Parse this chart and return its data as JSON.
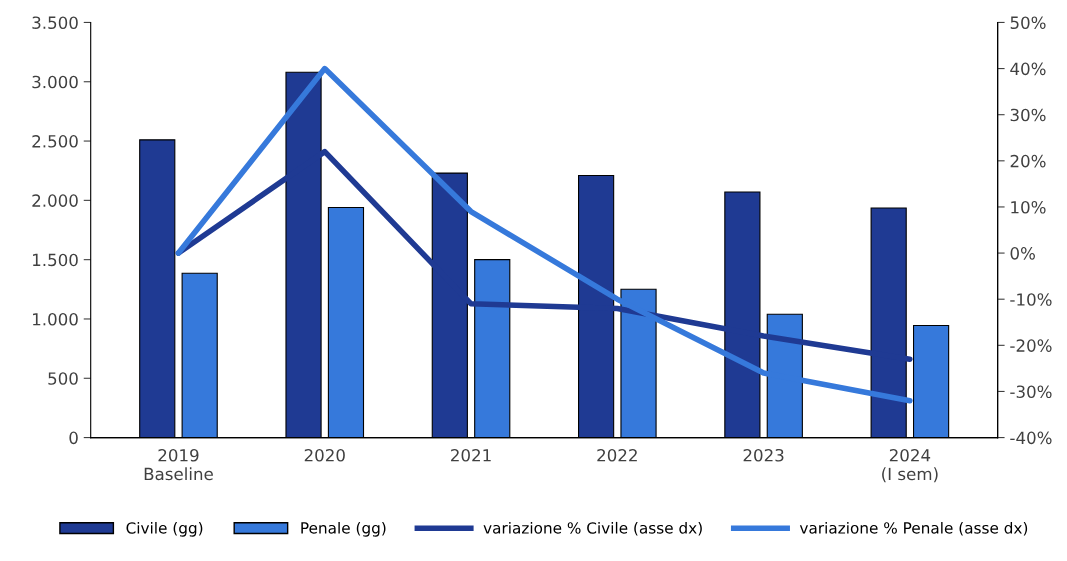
{
  "chart_data": {
    "type": "bar",
    "categories": [
      "2019\nBaseline",
      "2020",
      "2021",
      "2022",
      "2023",
      "2024\n(I sem)"
    ],
    "series": [
      {
        "name": "Civile (gg)",
        "color": "#1f3a93",
        "values": [
          2510,
          3080,
          2230,
          2210,
          2070,
          1935
        ]
      },
      {
        "name": "Penale (gg)",
        "color": "#3679db",
        "values": [
          1385,
          1940,
          1500,
          1250,
          1040,
          945
        ]
      },
      {
        "name": "variazione % Civile (asse dx)",
        "type": "line",
        "axis": "y2",
        "color": "#1f3a93",
        "values": [
          0,
          22,
          -11,
          -12,
          -18,
          -23
        ]
      },
      {
        "name": "variazione % Penale (asse dx)",
        "type": "line",
        "axis": "y2",
        "color": "#3679db",
        "values": [
          0,
          40,
          9,
          -10,
          -26,
          -32
        ]
      }
    ],
    "ylim": [
      0,
      3500
    ],
    "yticks": [
      0,
      500,
      {
        "value": 1000,
        "label": "1.000"
      },
      {
        "value": 1500,
        "label": "1.500"
      },
      {
        "value": 2000,
        "label": "2.000"
      },
      {
        "value": 2500,
        "label": "2.500"
      },
      {
        "value": 3000,
        "label": "3.000"
      },
      {
        "value": 3500,
        "label": "3.500"
      }
    ],
    "y2lim": [
      -40,
      50
    ],
    "y2ticks": [
      {
        "value": -40,
        "label": "-40%"
      },
      {
        "value": -30,
        "label": "-30%"
      },
      {
        "value": -20,
        "label": "-20%"
      },
      {
        "value": -10,
        "label": "-10%"
      },
      {
        "value": 0,
        "label": "0%"
      },
      {
        "value": 10,
        "label": "10%"
      },
      {
        "value": 20,
        "label": "20%"
      },
      {
        "value": 30,
        "label": "30%"
      },
      {
        "value": 40,
        "label": "40%"
      },
      {
        "value": 50,
        "label": "50%"
      }
    ],
    "grid": false,
    "legend": "bottom",
    "marker": "none",
    "line_style": "solid"
  }
}
